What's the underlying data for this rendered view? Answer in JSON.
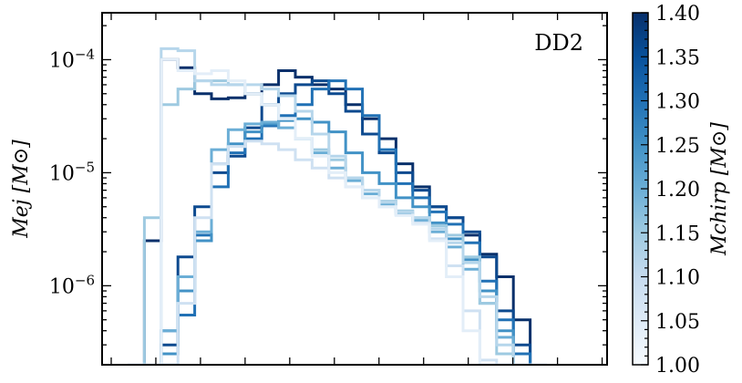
{
  "chart_data": {
    "type": "line",
    "step": true,
    "annotation": "DD2",
    "ylabel": "Mej [M⊙]",
    "yscale": "log",
    "ylim": [
      2e-07,
      0.00026
    ],
    "xlim": [
      0,
      1
    ],
    "xtick_count": 12,
    "ytick_major": [
      {
        "value": 1e-06,
        "label": "10−6"
      },
      {
        "value": 1e-05,
        "label": "10−5"
      },
      {
        "value": 0.0001,
        "label": "10−4"
      }
    ],
    "grid": false,
    "colorbar": {
      "label": "Mchirp [M⊙]",
      "min": 1.0,
      "max": 1.4,
      "ticks": [
        "1.00",
        "1.05",
        "1.10",
        "1.15",
        "1.20",
        "1.25",
        "1.30",
        "1.35",
        "1.40"
      ],
      "colormap": "Blues",
      "color_low": "#f7fbff",
      "color_high": "#08306b"
    },
    "series": [
      {
        "mchirp": 1.4,
        "color": "#08306b",
        "values": [
          2e-07,
          2.5e-06,
          0.0001,
          8.5e-05,
          5e-05,
          4.5e-05,
          4.6e-05,
          5e-05,
          6e-05,
          8e-05,
          7e-05,
          6e-05,
          5.5e-05,
          4e-05,
          3e-05,
          2e-05,
          1.2e-05,
          7.5e-06,
          5e-06,
          4e-06,
          2.8e-06,
          1.9e-06,
          1.2e-06,
          5e-07,
          2e-07
        ]
      },
      {
        "mchirp": 1.35,
        "color": "#0d4a8f",
        "values": [
          2e-07,
          2e-07,
          3e-07,
          1.8e-06,
          5e-06,
          1e-05,
          1.4e-05,
          2.5e-05,
          4e-05,
          5e-05,
          6e-05,
          6.5e-05,
          5e-05,
          3.5e-05,
          2.2e-05,
          1.5e-05,
          1e-05,
          7e-06,
          5e-06,
          4e-06,
          3e-06,
          1.8e-06,
          6e-07,
          3e-07,
          2e-07
        ]
      },
      {
        "mchirp": 1.3,
        "color": "#2171b5",
        "values": [
          2e-07,
          2e-07,
          4e-07,
          5.5e-07,
          2.8e-06,
          7.5e-06,
          1.5e-05,
          2e-05,
          2.6e-05,
          3.2e-05,
          4e-05,
          5.5e-05,
          6.5e-05,
          5.5e-05,
          3.2e-05,
          1.6e-05,
          8e-06,
          6e-06,
          4.5e-06,
          3.5e-06,
          2.4e-06,
          1.1e-06,
          5e-07,
          2.5e-07,
          2e-07
        ]
      },
      {
        "mchirp": 1.25,
        "color": "#4292c6",
        "values": [
          2e-07,
          2e-07,
          2.5e-07,
          9e-07,
          2.5e-06,
          1.2e-05,
          1.8e-05,
          2.3e-05,
          2.7e-05,
          2.9e-05,
          3e-05,
          2.8e-05,
          2.3e-05,
          1.5e-05,
          1e-05,
          8e-06,
          6e-06,
          5e-06,
          3.6e-06,
          2.6e-06,
          1.7e-06,
          9e-07,
          4e-07,
          2e-07,
          2e-07
        ]
      },
      {
        "mchirp": 1.2,
        "color": "#6baed6",
        "values": [
          2e-07,
          2e-07,
          4e-07,
          1.2e-06,
          3e-06,
          1.6e-05,
          2.4e-05,
          2.7e-05,
          2.8e-05,
          2.5e-05,
          2e-05,
          1.5e-05,
          1.1e-05,
          8.5e-06,
          6.5e-06,
          5.2e-06,
          4.3e-06,
          3.8e-06,
          3e-06,
          2.2e-06,
          1.4e-06,
          7e-07,
          3.5e-07,
          2e-07,
          2e-07
        ]
      },
      {
        "mchirp": 1.15,
        "color": "#9ecae1",
        "values": [
          2e-07,
          4e-06,
          4e-05,
          5.5e-05,
          6.5e-05,
          6.5e-05,
          6e-05,
          5e-05,
          4e-05,
          3e-05,
          2e-05,
          1.6e-05,
          1.3e-05,
          9e-06,
          7e-06,
          5.6e-06,
          4.6e-06,
          4e-06,
          3.4e-06,
          2.8e-06,
          1.8e-06,
          7e-07,
          2.5e-07,
          2e-07,
          2e-07
        ]
      },
      {
        "mchirp": 1.1,
        "color": "#b6d6eb",
        "values": [
          2e-07,
          2e-07,
          0.000125,
          0.00012,
          6.5e-05,
          6e-05,
          6e-05,
          6e-05,
          5.5e-05,
          4.8e-05,
          3.5e-05,
          2.2e-05,
          1.4e-05,
          9e-06,
          7e-06,
          5.5e-06,
          4.5e-06,
          4e-06,
          3.2e-06,
          2.4e-06,
          1.6e-06,
          8e-07,
          3e-07,
          2e-07,
          2e-07
        ]
      },
      {
        "mchirp": 1.05,
        "color": "#cfe1f2",
        "values": [
          2e-07,
          2e-07,
          2e-07,
          7e-07,
          4e-06,
          1.2e-05,
          1.7e-05,
          1.9e-05,
          1.8e-05,
          1.6e-05,
          1.3e-05,
          1.1e-05,
          9e-06,
          7.5e-06,
          6e-06,
          5e-06,
          4.2e-06,
          3.6e-06,
          2.6e-06,
          1.5e-06,
          6e-07,
          2.2e-07,
          2e-07,
          2e-07,
          2e-07
        ]
      },
      {
        "mchirp": 1.0,
        "color": "#e3eef8",
        "values": [
          2e-07,
          2e-07,
          0.0001,
          8e-05,
          7.5e-05,
          8e-05,
          6.5e-05,
          5e-05,
          4e-05,
          3e-05,
          2e-05,
          1.4e-05,
          1e-05,
          7.5e-06,
          6e-06,
          5e-06,
          4.2e-06,
          3.5e-06,
          2.5e-06,
          1.2e-06,
          4e-07,
          2e-07,
          2e-07,
          2e-07,
          2e-07
        ]
      }
    ]
  }
}
